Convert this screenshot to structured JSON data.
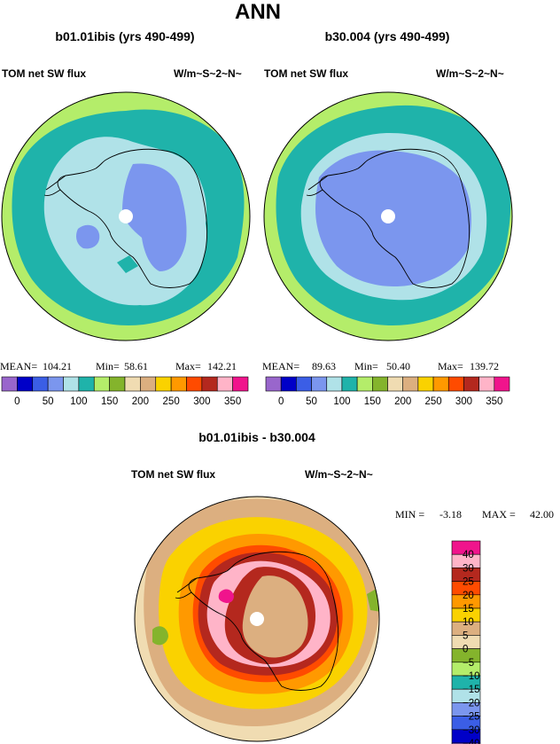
{
  "figure": {
    "season": "ANN",
    "palette_abs": [
      "#9966cc",
      "#0000c8",
      "#3b5ee6",
      "#7b96ee",
      "#b0e2e8",
      "#1fb3aa",
      "#b4ed6a",
      "#84b42c",
      "#f0dcb2",
      "#dcaf80",
      "#fad200",
      "#ff9900",
      "#ff4b00",
      "#b4281e",
      "#ffb4c8",
      "#f0148c"
    ],
    "palette_diff": [
      "#9966cc",
      "#0000c8",
      "#3b5ee6",
      "#7b96ee",
      "#b0e2e8",
      "#1fb3aa",
      "#b4ed6a",
      "#84b42c",
      "#f0dcb2",
      "#dcaf80",
      "#fad200",
      "#ff9900",
      "#ff4b00",
      "#b4281e",
      "#ffb4c8",
      "#f0148c"
    ]
  },
  "chart_data": [
    {
      "type": "heatmap",
      "projection": "south-polar-stereographic",
      "title": "b01.01ibis (yrs 490-499)",
      "variable": "TOM net SW flux",
      "units": "W/m~S~2~N~",
      "stats": {
        "mean_label": "MEAN=",
        "mean": "104.21",
        "min_label": "Min=",
        "min": "58.61",
        "max_label": "Max=",
        "max": "142.21"
      },
      "colorbar_ticks": [
        "0",
        "50",
        "100",
        "150",
        "200",
        "250",
        "300",
        "350"
      ],
      "zones": [
        {
          "level": "continent-interior",
          "color": "#7b96ee"
        },
        {
          "level": "coastal",
          "color": "#b0e2e8"
        },
        {
          "level": "sea-ice-zone",
          "color": "#1fb3aa"
        },
        {
          "level": "southern-ocean",
          "color": "#b4ed6a"
        }
      ]
    },
    {
      "type": "heatmap",
      "projection": "south-polar-stereographic",
      "title": "b30.004 (yrs 490-499)",
      "variable": "TOM net SW flux",
      "units": "W/m~S~2~N~",
      "stats": {
        "mean_label": "MEAN=",
        "mean": "89.63",
        "min_label": "Min=",
        "min": "50.40",
        "max_label": "Max=",
        "max": "139.72"
      },
      "colorbar_ticks": [
        "0",
        "50",
        "100",
        "150",
        "200",
        "250",
        "300",
        "350"
      ],
      "zones": [
        {
          "level": "continent-interior",
          "color": "#7b96ee"
        },
        {
          "level": "coastal",
          "color": "#b0e2e8"
        },
        {
          "level": "sea-ice-zone",
          "color": "#1fb3aa"
        },
        {
          "level": "southern-ocean",
          "color": "#b4ed6a"
        }
      ]
    },
    {
      "type": "heatmap",
      "projection": "south-polar-stereographic",
      "title": "b01.01ibis - b30.004",
      "variable": "TOM net SW flux",
      "units": "W/m~S~2~N~",
      "stats": {
        "min_label": "MIN =",
        "min": "-3.18",
        "max_label": "MAX =",
        "max": "42.00"
      },
      "colorbar_ticks": [
        "40",
        "30",
        "25",
        "20",
        "15",
        "10",
        "5",
        "0",
        "−5",
        "−10",
        "−15",
        "−20",
        "−25",
        "−30",
        "−40"
      ]
    }
  ]
}
